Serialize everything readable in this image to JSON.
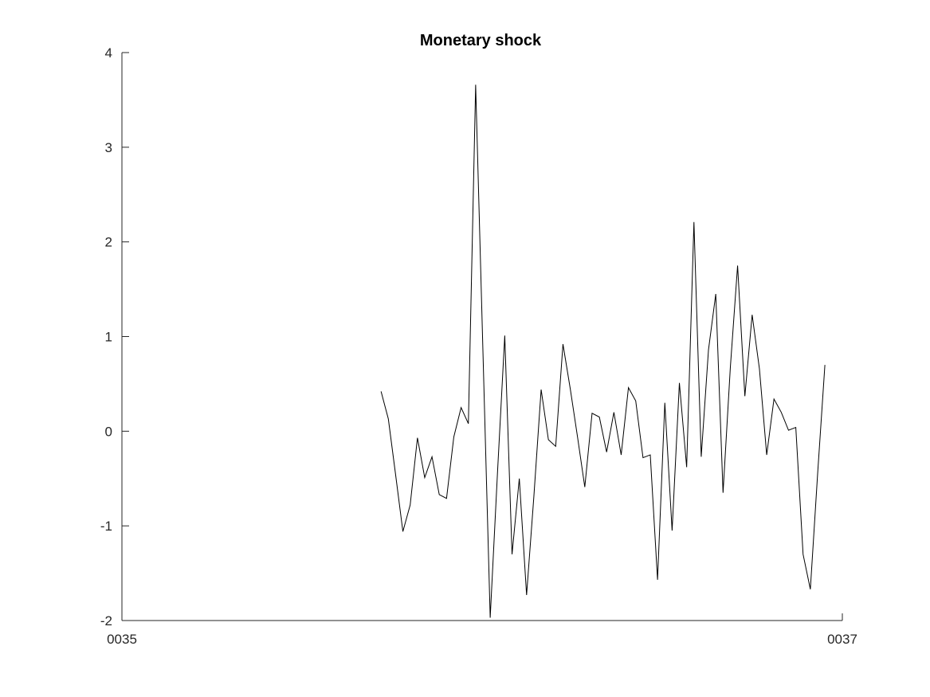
{
  "chart_data": {
    "type": "line",
    "title": "Monetary shock",
    "xlabel": "",
    "ylabel": "",
    "xlim": [
      0,
      100
    ],
    "ylim": [
      -2,
      4
    ],
    "xticks": [
      {
        "value": 0,
        "label": "0035"
      },
      {
        "value": 100,
        "label": "0037"
      }
    ],
    "yticks": [
      {
        "value": -2,
        "label": "-2"
      },
      {
        "value": -1,
        "label": "-1"
      },
      {
        "value": 0,
        "label": "0"
      },
      {
        "value": 1,
        "label": "1"
      },
      {
        "value": 2,
        "label": "2"
      },
      {
        "value": 3,
        "label": "3"
      },
      {
        "value": 4,
        "label": "4"
      }
    ],
    "grid": false,
    "colors": {
      "line": "#000000",
      "axis": "#262626"
    },
    "series": [
      {
        "x": [
          35.97,
          36.98,
          37.99,
          39.0,
          40.01,
          41.02,
          42.03,
          43.04,
          44.05,
          45.06,
          46.07,
          47.08,
          48.09,
          49.1,
          50.11,
          51.12,
          52.13,
          53.14,
          54.15,
          55.16,
          56.17,
          57.18,
          58.19,
          59.2,
          60.21,
          61.22,
          62.23,
          63.24,
          64.25,
          65.26,
          66.27,
          67.28,
          68.29,
          69.3,
          70.31,
          71.32,
          72.33,
          73.34,
          74.35,
          75.36,
          76.37,
          77.38,
          78.39,
          79.4,
          80.41,
          81.42,
          82.43,
          83.44,
          84.45,
          85.46,
          86.47,
          87.48,
          88.49,
          89.5,
          90.51,
          91.52,
          92.53,
          93.54,
          94.55,
          95.56,
          96.57,
          97.58
        ],
        "values": [
          0.42,
          0.13,
          -0.46,
          -1.06,
          -0.78,
          -0.07,
          -0.49,
          -0.27,
          -0.67,
          -0.71,
          -0.06,
          0.25,
          0.08,
          3.66,
          0.85,
          -1.97,
          -0.44,
          1.01,
          -1.3,
          -0.5,
          -1.73,
          -0.69,
          0.44,
          -0.09,
          -0.16,
          0.92,
          0.45,
          -0.06,
          -0.59,
          0.19,
          0.15,
          -0.22,
          0.2,
          -0.25,
          0.46,
          0.32,
          -0.28,
          -0.25,
          -1.57,
          0.3,
          -1.05,
          0.51,
          -0.38,
          2.21,
          -0.27,
          0.86,
          1.45,
          -0.65,
          0.67,
          1.75,
          0.37,
          1.23,
          0.66,
          -0.25,
          0.34,
          0.2,
          0.01,
          0.04,
          -1.3,
          -1.67,
          -0.45,
          0.7
        ]
      }
    ]
  }
}
